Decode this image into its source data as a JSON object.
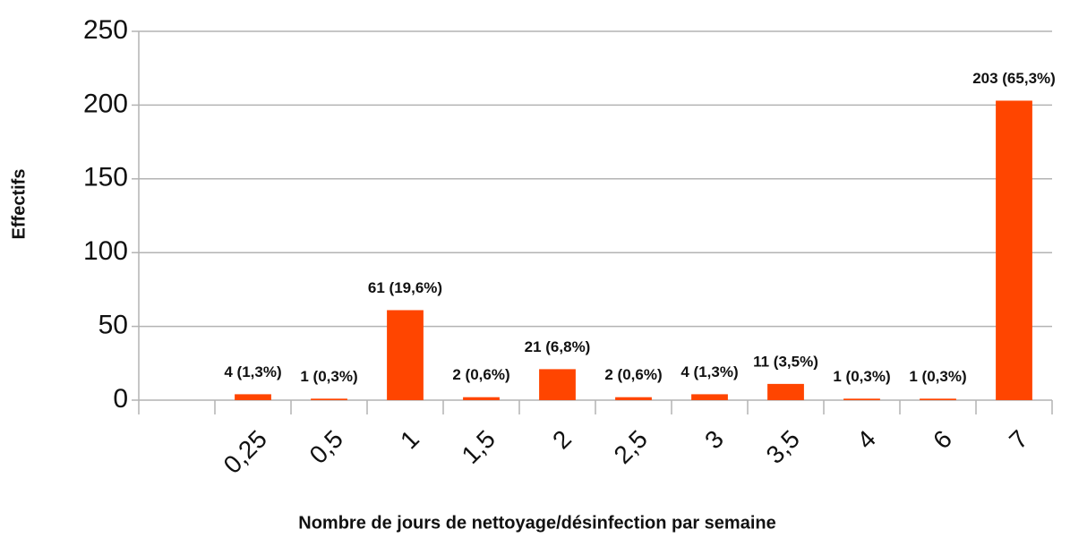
{
  "chart_data": {
    "type": "bar",
    "x_label": "Nombre de jours de nettoyage/désinfection par semaine",
    "y_label": "Effectifs",
    "categories": [
      null,
      "0,25",
      "0,5",
      "1",
      "1,5",
      "2",
      "2,5",
      "3",
      "3,5",
      "4",
      "6",
      "7"
    ],
    "values": [
      null,
      4,
      1,
      61,
      2,
      21,
      2,
      4,
      11,
      1,
      1,
      203
    ],
    "value_labels": [
      null,
      "4 (1,3%)",
      "1 (0,3%)",
      "61 (19,6%)",
      "2 (0,6%)",
      "21 (6,8%)",
      "2 (0,6%)",
      "4 (1,3%)",
      "11 (3,5%)",
      "1 (0,3%)",
      "1 (0,3%)",
      "203 (65,3%)"
    ],
    "color": "#ff4500",
    "ylim": [
      0,
      250
    ],
    "yticks": [
      0,
      50,
      100,
      150,
      200,
      250
    ],
    "grid": true
  }
}
